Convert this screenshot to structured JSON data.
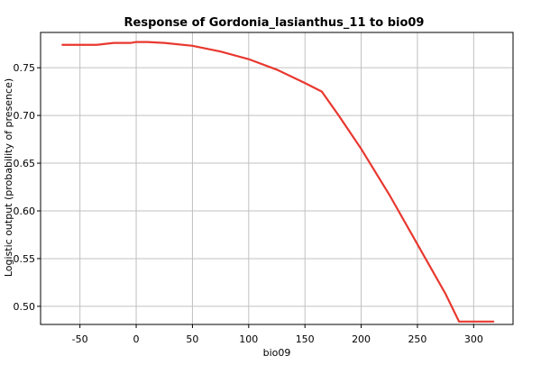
{
  "chart_data": {
    "type": "line",
    "title": "Response of Gordonia_lasianthus_11 to bio09",
    "xlabel": "bio09",
    "ylabel": "Logistic output (probability of presence)",
    "xlim": [
      -85,
      335
    ],
    "ylim": [
      0.481,
      0.787
    ],
    "xticks": [
      -50,
      0,
      50,
      100,
      150,
      200,
      250,
      300
    ],
    "xtick_labels": [
      "-50",
      "0",
      "50",
      "100",
      "150",
      "200",
      "250",
      "300"
    ],
    "yticks": [
      0.5,
      0.55,
      0.6,
      0.65,
      0.7,
      0.75
    ],
    "ytick_labels": [
      "0.50",
      "0.55",
      "0.60",
      "0.65",
      "0.70",
      "0.75"
    ],
    "grid": true,
    "series": [
      {
        "color": "#e8382f",
        "x": [
          -66,
          -35,
          -20,
          -5,
          0,
          10,
          25,
          50,
          75,
          100,
          125,
          150,
          165,
          180,
          200,
          225,
          250,
          275,
          287,
          300,
          318
        ],
        "y": [
          0.774,
          0.774,
          0.776,
          0.776,
          0.777,
          0.777,
          0.776,
          0.773,
          0.767,
          0.759,
          0.748,
          0.734,
          0.725,
          0.7,
          0.665,
          0.617,
          0.565,
          0.513,
          0.484,
          0.484,
          0.484
        ]
      }
    ]
  }
}
